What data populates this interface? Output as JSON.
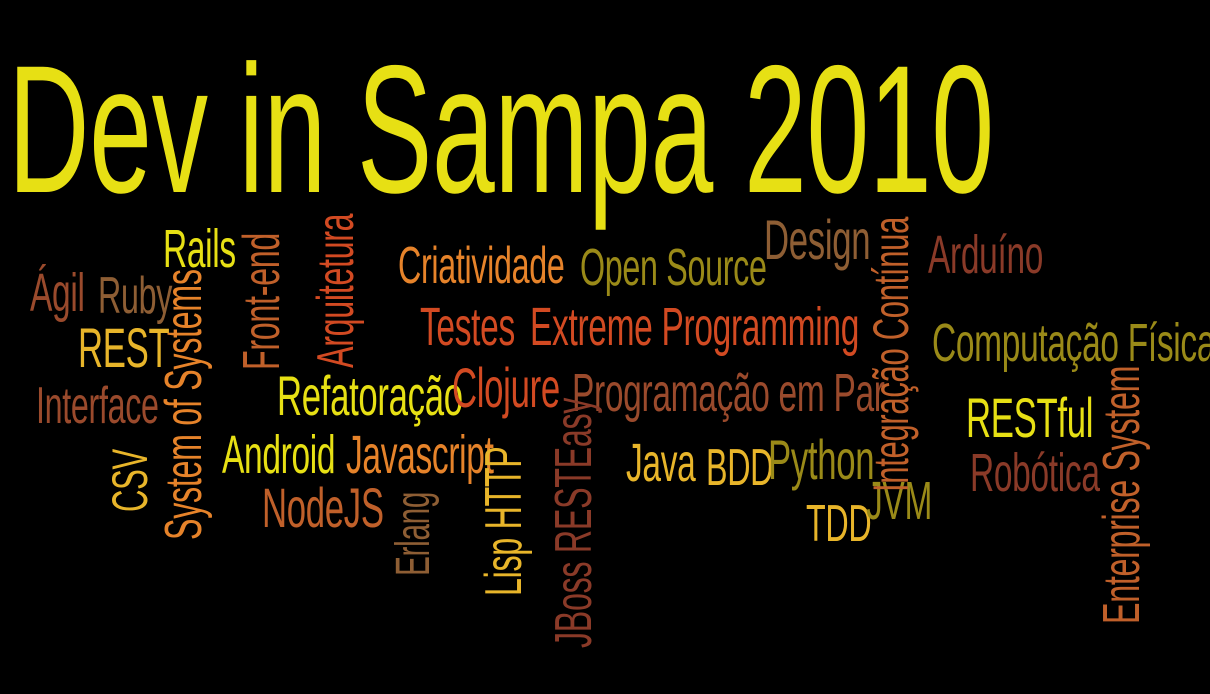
{
  "title": "Dev in Sampa 2010",
  "words": {
    "rails": "Rails",
    "agil": "Ágil",
    "ruby": "Ruby",
    "rest": "REST",
    "interface": "Interface",
    "csv": "CSV",
    "system_of_systems": "System of Systems",
    "front_end": "Front-end",
    "arquitetura": "Arquitetura",
    "refatoracao": "Refatoração",
    "android": "Android",
    "javascript": "Javascript",
    "nodejs": "NodeJS",
    "erlang": "Erlang",
    "criatividade": "Criatividade",
    "open_source": "Open Source",
    "design": "Design",
    "testes": "Testes",
    "extreme_programming": "Extreme Programming",
    "clojure": "Clojure",
    "programacao_em_par": "Programação em Par",
    "lisp": "Lisp",
    "http": "HTTP",
    "jboss": "JBoss",
    "resteasy": "RESTEasy",
    "java": "Java",
    "bdd": "BDD",
    "python": "Python",
    "tdd": "TDD",
    "jvm": "JVM",
    "integracao_continua": "Integração Contínua",
    "arduino": "Arduíno",
    "computacao_fisica": "Computação Física",
    "restful": "RESTful",
    "robotica": "Robótica",
    "enterprise_system": "Enterprise System"
  },
  "colors": {
    "background": "#000000",
    "title": "#e7e014"
  }
}
